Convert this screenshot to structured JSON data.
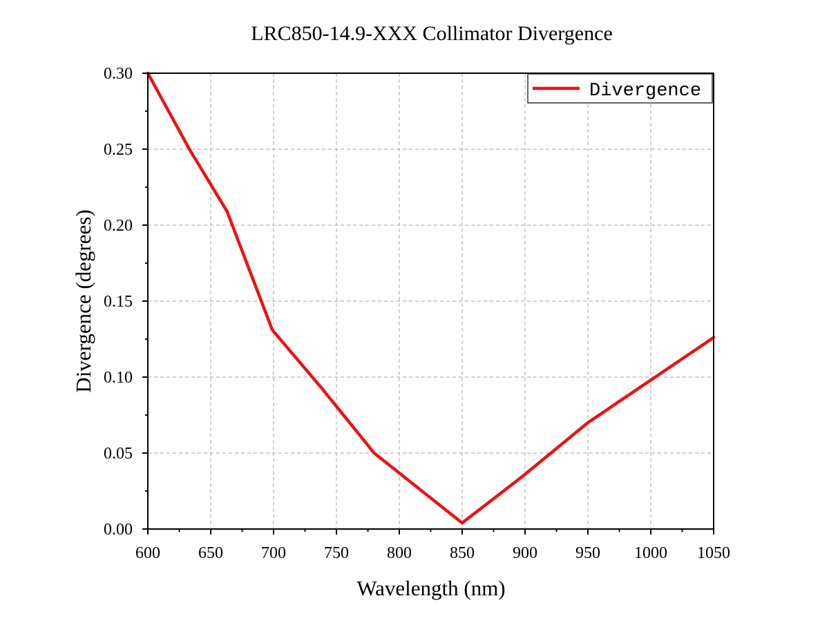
{
  "chart_data": {
    "type": "line",
    "title": "LRC850-14.9-XXX Collimator Divergence",
    "xlabel": "Wavelength (nm)",
    "ylabel": "Divergence (degrees)",
    "xlim": [
      600,
      1050
    ],
    "ylim": [
      0,
      0.3
    ],
    "x_ticks": [
      600,
      650,
      700,
      750,
      800,
      850,
      900,
      950,
      1000,
      1050
    ],
    "x_tick_labels": [
      "600",
      "650",
      "700",
      "750",
      "800",
      "850",
      "900",
      "950",
      "1000",
      "1050"
    ],
    "y_ticks": [
      0,
      0.05,
      0.1,
      0.15,
      0.2,
      0.25,
      0.3
    ],
    "y_tick_labels": [
      "0.00",
      "0.05",
      "0.10",
      "0.15",
      "0.20",
      "0.25",
      "0.30"
    ],
    "grid": true,
    "legend_position": "top-right",
    "series": [
      {
        "name": "Divergence",
        "color": "#ee1111",
        "x": [
          600,
          633,
          663,
          699,
          738,
          780,
          850,
          897,
          950,
          1050
        ],
        "y": [
          0.3,
          0.25,
          0.209,
          0.131,
          0.093,
          0.05,
          0.004,
          0.034,
          0.07,
          0.126
        ]
      }
    ]
  }
}
